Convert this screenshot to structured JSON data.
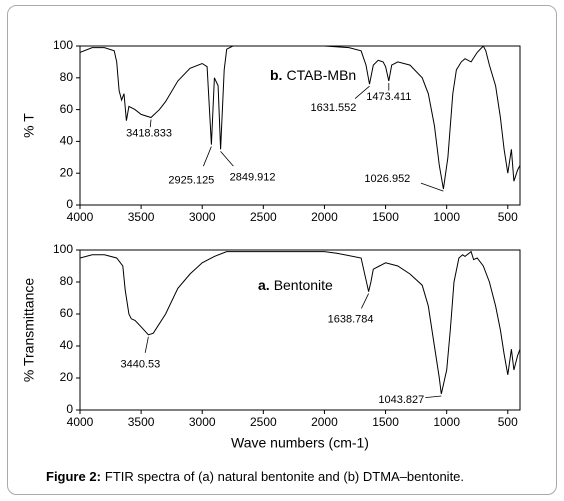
{
  "caption": {
    "label": "Figure 2:",
    "text": "FTIR spectra of (a) natural bentonite and (b) DTMA–bentonite."
  },
  "chart_data": [
    {
      "type": "line",
      "ylabel": "% T",
      "xlim": [
        4000,
        400
      ],
      "ylim": [
        0,
        100
      ],
      "xticks": [
        4000,
        3500,
        3000,
        2500,
        2000,
        1500,
        1000,
        500
      ],
      "yticks": [
        0,
        20,
        40,
        60,
        80,
        100
      ],
      "x": [
        4000,
        3900,
        3800,
        3720,
        3700,
        3680,
        3660,
        3640,
        3620,
        3600,
        3550,
        3500,
        3418.833,
        3350,
        3300,
        3200,
        3100,
        3000,
        2960,
        2925.125,
        2900,
        2870,
        2849.912,
        2820,
        2800,
        2750,
        2000,
        1800,
        1700,
        1660,
        1631.552,
        1600,
        1560,
        1520,
        1500,
        1473.411,
        1450,
        1400,
        1300,
        1200,
        1150,
        1100,
        1060,
        1026.952,
        990,
        950,
        920,
        880,
        850,
        800,
        750,
        700,
        680,
        650,
        600,
        560,
        530,
        500,
        470,
        450,
        420,
        400
      ],
      "series": [
        {
          "name": "CTAB-MBn",
          "letter": "b.",
          "color": "#000000",
          "values": [
            96,
            99,
            99,
            97,
            90,
            72,
            66,
            70,
            53,
            62,
            60,
            57,
            55,
            60,
            65,
            78,
            86,
            89,
            87,
            38,
            80,
            75,
            35,
            85,
            98,
            100,
            100,
            99,
            97,
            88,
            76,
            88,
            91,
            90,
            87,
            78,
            88,
            90,
            88,
            80,
            70,
            50,
            25,
            10,
            30,
            70,
            85,
            90,
            92,
            90,
            96,
            100,
            97,
            88,
            75,
            55,
            35,
            20,
            35,
            15,
            22,
            25
          ]
        }
      ],
      "peaks": [
        {
          "x": 3418.833,
          "y": 55
        },
        {
          "x": 2925.125,
          "y": 38
        },
        {
          "x": 2849.912,
          "y": 35
        },
        {
          "x": 1631.552,
          "y": 76
        },
        {
          "x": 1473.411,
          "y": 78
        },
        {
          "x": 1026.952,
          "y": 10
        }
      ]
    },
    {
      "type": "line",
      "ylabel": "% Transmittance",
      "xlabel": "Wave numbers (cm-1)",
      "xlim": [
        4000,
        400
      ],
      "ylim": [
        0,
        100
      ],
      "xticks": [
        4000,
        3500,
        3000,
        2500,
        2000,
        1500,
        1000,
        500
      ],
      "yticks": [
        0,
        20,
        40,
        60,
        80,
        100
      ],
      "x": [
        4000,
        3900,
        3800,
        3700,
        3650,
        3630,
        3600,
        3580,
        3550,
        3500,
        3440.53,
        3400,
        3300,
        3200,
        3100,
        3000,
        2900,
        2800,
        2500,
        2000,
        1900,
        1700,
        1680,
        1650,
        1638.784,
        1620,
        1600,
        1550,
        1500,
        1450,
        1400,
        1300,
        1200,
        1150,
        1100,
        1060,
        1043.827,
        1000,
        970,
        940,
        900,
        870,
        850,
        800,
        780,
        750,
        700,
        650,
        600,
        560,
        530,
        500,
        470,
        450,
        420,
        400
      ],
      "series": [
        {
          "name": "Bentonite",
          "letter": "a.",
          "color": "#000000",
          "values": [
            95,
            97,
            97,
            95,
            90,
            75,
            60,
            57,
            56,
            52,
            47,
            48,
            60,
            76,
            85,
            92,
            96,
            99,
            99,
            99,
            98,
            95,
            88,
            78,
            74,
            80,
            88,
            90,
            92,
            91,
            90,
            85,
            78,
            65,
            40,
            20,
            10,
            25,
            50,
            80,
            95,
            97,
            96,
            99,
            94,
            95,
            90,
            80,
            65,
            50,
            35,
            22,
            38,
            25,
            34,
            38
          ]
        }
      ],
      "peaks": [
        {
          "x": 3440.53,
          "y": 47
        },
        {
          "x": 1638.784,
          "y": 74
        },
        {
          "x": 1043.827,
          "y": 10
        }
      ]
    }
  ]
}
